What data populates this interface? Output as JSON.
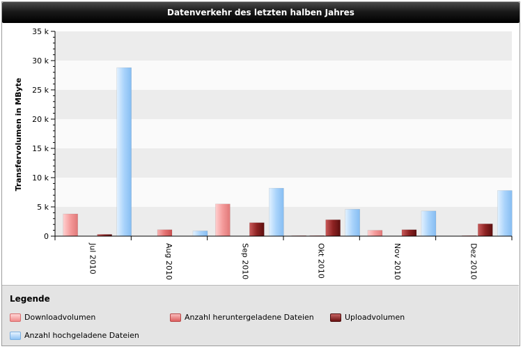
{
  "chart_data": {
    "type": "bar",
    "title": "Datenverkehr des letzten halben Jahres",
    "ylabel": "Transfervolumen in MByte",
    "xlabel": "",
    "ylim": [
      0,
      35000
    ],
    "yticks": [
      {
        "value": 0,
        "label": "0"
      },
      {
        "value": 5000,
        "label": "5 k"
      },
      {
        "value": 10000,
        "label": "10 k"
      },
      {
        "value": 15000,
        "label": "15 k"
      },
      {
        "value": 20000,
        "label": "20 k"
      },
      {
        "value": 25000,
        "label": "25 k"
      },
      {
        "value": 30000,
        "label": "30 k"
      },
      {
        "value": 35000,
        "label": "35 k"
      }
    ],
    "categories": [
      "Jul 2010",
      "Aug 2010",
      "Sep 2010",
      "Okt 2010",
      "Nov 2010",
      "Dez 2010"
    ],
    "series": [
      {
        "name": "Downloadvolumen",
        "color": "#f28c8c",
        "values": [
          3800,
          0,
          5500,
          100,
          1000,
          0
        ]
      },
      {
        "name": "Anzahl heruntergeladene Dateien",
        "color": "#e86a6a",
        "values": [
          0,
          1100,
          0,
          100,
          0,
          100
        ]
      },
      {
        "name": "Uploadvolumen",
        "color": "#8b1d1d",
        "values": [
          300,
          0,
          2300,
          2800,
          1100,
          2100
        ]
      },
      {
        "name": "Anzahl hochgeladene Dateien",
        "color": "#9ccbf7",
        "values": [
          28800,
          900,
          8200,
          4600,
          4300,
          7800
        ]
      }
    ],
    "legend": {
      "title": "Legende",
      "position": "bottom"
    },
    "grid": true
  }
}
